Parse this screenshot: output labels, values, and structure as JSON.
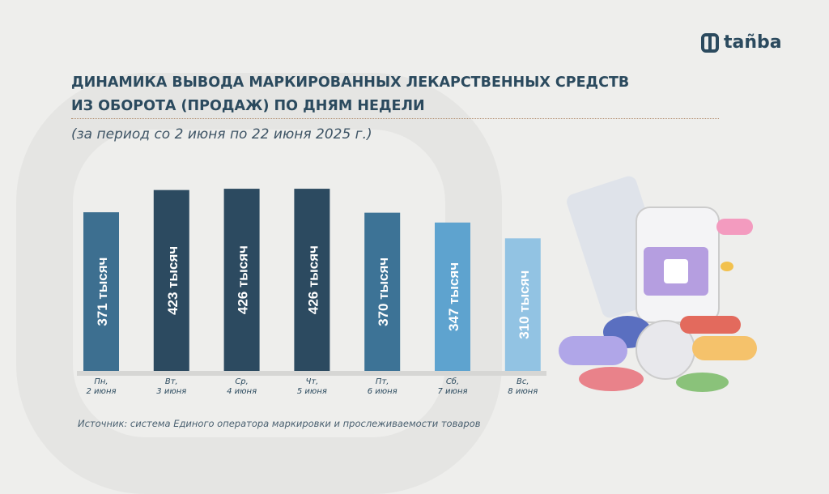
{
  "logo": {
    "text": "tañba"
  },
  "header": {
    "title_line1": "ДИНАМИКА ВЫВОДА МАРКИРОВАННЫХ ЛЕКАРСТВЕННЫХ СРЕДСТВ",
    "title_line2": "ИЗ ОБОРОТА (ПРОДАЖ) ПО ДНЯМ НЕДЕЛИ",
    "subtitle": "(за период со 2 июня по 22 июня 2025 г.)"
  },
  "source": "Источник: система Единого оператора маркировки и прослеживаемости товаров",
  "chart_data": {
    "type": "bar",
    "unit": "тысяч",
    "ylim": [
      0,
      440
    ],
    "grid": false,
    "categories": [
      [
        "Пн,",
        "2 июня"
      ],
      [
        "Вт,",
        "3 июня"
      ],
      [
        "Ср,",
        "4 июня"
      ],
      [
        "Чт,",
        "5 июня"
      ],
      [
        "Пт,",
        "6 июня"
      ],
      [
        "Сб,",
        "7 июня"
      ],
      [
        "Вс,",
        "8 июня"
      ]
    ],
    "values": [
      371,
      423,
      426,
      426,
      370,
      347,
      310
    ],
    "labels": [
      "371 тысяч",
      "423 тысяч",
      "426 тысяч",
      "426 тысяч",
      "370 тысяч",
      "347 тысяч",
      "310 тысяч"
    ],
    "colors": [
      "#3d6f90",
      "#2c4a60",
      "#2c4a60",
      "#2c4a60",
      "#3d7396",
      "#5ea3cf",
      "#92c3e3"
    ]
  },
  "illustration": {
    "icon": "pills-and-medicine-bottle-icon"
  }
}
